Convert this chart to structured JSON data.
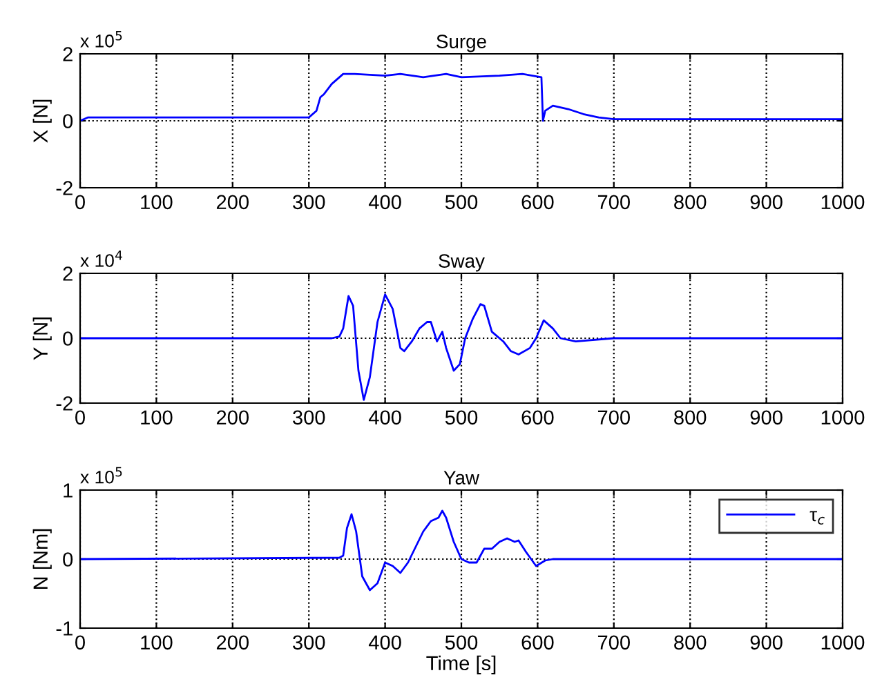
{
  "chart_data": [
    {
      "type": "line",
      "title": "Surge",
      "ylabel": "X [N]",
      "annotations": [
        "x 10$^{5}$"
      ],
      "xlim": [
        0,
        1000
      ],
      "xticks": [
        0,
        100,
        200,
        300,
        400,
        500,
        600,
        700,
        800,
        900,
        1000
      ],
      "ylim": [
        -2,
        2
      ],
      "yticks": [
        -2,
        0,
        2
      ],
      "grid": true,
      "legend": false,
      "series": [
        {
          "color": "#0000ff",
          "x": [
            0,
            10,
            50,
            300,
            310,
            315,
            320,
            330,
            345,
            360,
            400,
            420,
            450,
            480,
            500,
            550,
            580,
            605,
            607,
            610,
            620,
            640,
            660,
            680,
            700,
            1000
          ],
          "values": [
            0,
            0.1,
            0.1,
            0.1,
            0.3,
            0.7,
            0.8,
            1.1,
            1.4,
            1.4,
            1.35,
            1.4,
            1.3,
            1.4,
            1.3,
            1.35,
            1.4,
            1.3,
            0.0,
            0.3,
            0.45,
            0.35,
            0.2,
            0.1,
            0.05,
            0.05
          ]
        }
      ]
    },
    {
      "type": "line",
      "title": "Sway",
      "ylabel": "Y [N]",
      "annotations": [
        "x 10$^{4}$"
      ],
      "xlim": [
        0,
        1000
      ],
      "xticks": [
        0,
        100,
        200,
        300,
        400,
        500,
        600,
        700,
        800,
        900,
        1000
      ],
      "ylim": [
        -2,
        2
      ],
      "yticks": [
        -2,
        0,
        2
      ],
      "grid": true,
      "legend": false,
      "series": [
        {
          "color": "#0000ff",
          "x": [
            0,
            330,
            340,
            345,
            352,
            358,
            365,
            372,
            380,
            390,
            400,
            410,
            420,
            425,
            435,
            445,
            455,
            460,
            468,
            475,
            480,
            490,
            498,
            505,
            515,
            525,
            530,
            540,
            555,
            565,
            575,
            590,
            598,
            608,
            620,
            630,
            650,
            700,
            1000
          ],
          "values": [
            0,
            0,
            0.05,
            0.3,
            1.3,
            1.0,
            -1.0,
            -1.9,
            -1.2,
            0.5,
            1.35,
            0.9,
            -0.3,
            -0.4,
            -0.1,
            0.3,
            0.5,
            0.5,
            -0.1,
            0.2,
            -0.3,
            -1.0,
            -0.8,
            0,
            0.6,
            1.05,
            1.0,
            0.2,
            -0.1,
            -0.4,
            -0.5,
            -0.3,
            0.0,
            0.55,
            0.3,
            0,
            -0.1,
            0,
            0
          ]
        }
      ]
    },
    {
      "type": "line",
      "title": "Yaw",
      "ylabel": "N [Nm]",
      "xlabel": "Time [s]",
      "annotations": [
        "x 10$^{5}$"
      ],
      "xlim": [
        0,
        1000
      ],
      "xticks": [
        0,
        100,
        200,
        300,
        400,
        500,
        600,
        700,
        800,
        900,
        1000
      ],
      "ylim": [
        -1,
        1
      ],
      "yticks": [
        -1,
        0,
        1
      ],
      "grid": true,
      "legend": "top right",
      "series": [
        {
          "name": "τ$_{c}$",
          "color": "#0000ff",
          "x": [
            0,
            340,
            345,
            350,
            356,
            362,
            370,
            380,
            390,
            400,
            410,
            420,
            430,
            450,
            460,
            470,
            475,
            480,
            490,
            500,
            510,
            520,
            530,
            540,
            550,
            560,
            570,
            575,
            585,
            598,
            610,
            620,
            1000
          ],
          "values": [
            0,
            0.02,
            0.05,
            0.45,
            0.65,
            0.4,
            -0.25,
            -0.45,
            -0.35,
            -0.05,
            -0.1,
            -0.2,
            -0.05,
            0.4,
            0.55,
            0.6,
            0.7,
            0.6,
            0.25,
            0.0,
            -0.05,
            -0.05,
            0.15,
            0.15,
            0.25,
            0.3,
            0.25,
            0.27,
            0.1,
            -0.1,
            -0.02,
            0,
            0
          ]
        }
      ]
    }
  ]
}
